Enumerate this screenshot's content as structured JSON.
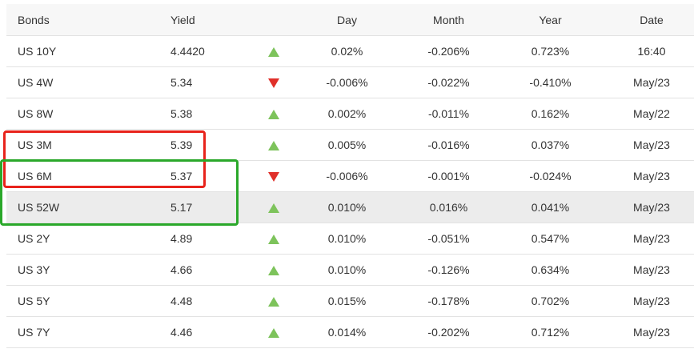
{
  "columns": {
    "name": "Bonds",
    "yield": "Yield",
    "day": "Day",
    "month": "Month",
    "year": "Year",
    "date": "Date"
  },
  "colors": {
    "up_arrow": "#7dc35b",
    "down_arrow": "#e0302a",
    "positive_day_text": "#3a8b1b",
    "annotation_red": "#e8231b",
    "annotation_green": "#2aa82a",
    "highlight_row": "#ececec"
  },
  "rows": [
    {
      "name": "US 10Y",
      "yield": "4.4420",
      "direction": "up-arrow-icon",
      "day": "0.02%",
      "month": "-0.206%",
      "year": "0.723%",
      "date": "16:40"
    },
    {
      "name": "US 4W",
      "yield": "5.34",
      "direction": "down-arrow-icon",
      "day": "-0.006%",
      "month": "-0.022%",
      "year": "-0.410%",
      "date": "May/23"
    },
    {
      "name": "US 8W",
      "yield": "5.38",
      "direction": "up-arrow-icon",
      "day": "0.002%",
      "month": "-0.011%",
      "year": "0.162%",
      "date": "May/22"
    },
    {
      "name": "US 3M",
      "yield": "5.39",
      "direction": "up-arrow-icon",
      "day": "0.005%",
      "month": "-0.016%",
      "year": "0.037%",
      "date": "May/23"
    },
    {
      "name": "US 6M",
      "yield": "5.37",
      "direction": "down-arrow-icon",
      "day": "-0.006%",
      "month": "-0.001%",
      "year": "-0.024%",
      "date": "May/23"
    },
    {
      "name": "US 52W",
      "yield": "5.17",
      "direction": "up-arrow-icon",
      "day": "0.010%",
      "month": "0.016%",
      "year": "0.041%",
      "date": "May/23"
    },
    {
      "name": "US 2Y",
      "yield": "4.89",
      "direction": "up-arrow-icon",
      "day": "0.010%",
      "month": "-0.051%",
      "year": "0.547%",
      "date": "May/23"
    },
    {
      "name": "US 3Y",
      "yield": "4.66",
      "direction": "up-arrow-icon",
      "day": "0.010%",
      "month": "-0.126%",
      "year": "0.634%",
      "date": "May/23"
    },
    {
      "name": "US 5Y",
      "yield": "4.48",
      "direction": "up-arrow-icon",
      "day": "0.015%",
      "month": "-0.178%",
      "year": "0.702%",
      "date": "May/23"
    },
    {
      "name": "US 7Y",
      "yield": "4.46",
      "direction": "up-arrow-icon",
      "day": "0.014%",
      "month": "-0.202%",
      "year": "0.712%",
      "date": "May/23"
    }
  ]
}
